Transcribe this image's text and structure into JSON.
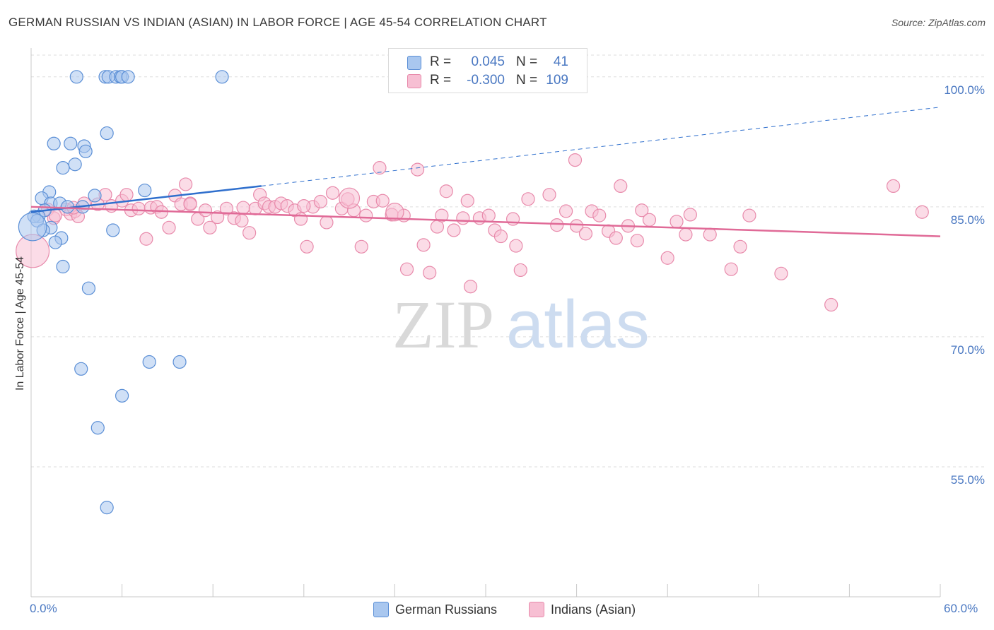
{
  "title": "GERMAN RUSSIAN VS INDIAN (ASIAN) IN LABOR FORCE | AGE 45-54 CORRELATION CHART",
  "source": "Source: ZipAtlas.com",
  "watermark": {
    "zip": "ZIP",
    "atlas": "atlas"
  },
  "legend": {
    "rows": [
      {
        "r_label": "R =",
        "r_value": "0.045",
        "n_label": "N =",
        "n_value": "41"
      },
      {
        "r_label": "R =",
        "r_value": "-0.300",
        "n_label": "N =",
        "n_value": "109"
      }
    ]
  },
  "bottom_legend": {
    "series_a": "German Russians",
    "series_b": "Indians (Asian)"
  },
  "colors": {
    "blue_fill": "#a9c7ef",
    "blue_stroke": "#5b8fd6",
    "blue_line": "#2f6fcd",
    "pink_fill": "#f7bfd3",
    "pink_stroke": "#e88aab",
    "pink_line": "#e06a97",
    "axis_text": "#4a78c2",
    "grid": "#dddddd"
  },
  "chart_data": {
    "type": "scatter",
    "title": "GERMAN RUSSIAN VS INDIAN (ASIAN) IN LABOR FORCE | AGE 45-54 CORRELATION CHART",
    "xlabel": "",
    "ylabel": "In Labor Force | Age 45-54",
    "xlim": [
      0,
      60
    ],
    "ylim": [
      40,
      103
    ],
    "x_tick_labels": [
      "0.0%",
      "60.0%"
    ],
    "y_ticks": [
      {
        "value": 55,
        "label": "55.0%"
      },
      {
        "value": 70,
        "label": "70.0%"
      },
      {
        "value": 85,
        "label": "85.0%"
      },
      {
        "value": 100,
        "label": "100.0%"
      }
    ],
    "grid": "horizontal dashed",
    "legend_position": "top-center",
    "series": [
      {
        "name": "German Russians",
        "color": "#a9c7ef",
        "trend": {
          "x0": 0,
          "y0": 84.4,
          "x1": 15.2,
          "y1": 87.4,
          "dashed_to_x": 60,
          "dashed_to_y": 96.5
        },
        "points": [
          [
            3.0,
            100
          ],
          [
            4.9,
            100
          ],
          [
            5.1,
            100
          ],
          [
            5.6,
            100
          ],
          [
            5.9,
            100
          ],
          [
            6.0,
            100
          ],
          [
            6.4,
            100
          ],
          [
            12.6,
            100
          ],
          [
            5.0,
            93.5
          ],
          [
            1.5,
            92.3
          ],
          [
            2.6,
            92.3
          ],
          [
            3.5,
            92.0
          ],
          [
            3.6,
            91.4
          ],
          [
            2.9,
            89.9
          ],
          [
            2.1,
            89.5
          ],
          [
            1.2,
            86.7
          ],
          [
            0.7,
            86.0
          ],
          [
            4.2,
            86.3
          ],
          [
            7.5,
            86.9
          ],
          [
            1.3,
            85.4
          ],
          [
            1.9,
            85.4
          ],
          [
            3.4,
            85.0
          ],
          [
            2.4,
            85.0
          ],
          [
            0.9,
            84.6
          ],
          [
            0.5,
            83.9
          ],
          [
            0.2,
            83.9
          ],
          [
            0.4,
            83.4
          ],
          [
            1.3,
            82.6
          ],
          [
            0.8,
            82.3
          ],
          [
            5.4,
            82.3
          ],
          [
            2.0,
            81.4
          ],
          [
            1.6,
            80.9
          ],
          [
            2.1,
            78.1
          ],
          [
            3.8,
            75.6
          ],
          [
            7.8,
            67.1
          ],
          [
            9.8,
            67.1
          ],
          [
            3.3,
            66.3
          ],
          [
            6.0,
            63.2
          ],
          [
            4.4,
            59.5
          ],
          [
            5.0,
            50.3
          ],
          [
            0.1,
            82.7
          ]
        ],
        "sizes": [
          1,
          1,
          1,
          1,
          1,
          1,
          1,
          1,
          1,
          1,
          1,
          1,
          1,
          1,
          1,
          1,
          1,
          1,
          1,
          1,
          1,
          1,
          1,
          1,
          1,
          1,
          1,
          1,
          1,
          1,
          1,
          1,
          1,
          1,
          1,
          1,
          1,
          1,
          1,
          1,
          2.2
        ]
      },
      {
        "name": "Indians (Asian)",
        "color": "#f7bfd3",
        "trend": {
          "x0": 0,
          "y0": 85.0,
          "x1": 60,
          "y1": 81.6
        },
        "points": [
          [
            0.1,
            79.9
          ],
          [
            1.1,
            84.7
          ],
          [
            1.5,
            83.7
          ],
          [
            2.3,
            84.7
          ],
          [
            2.6,
            84.2
          ],
          [
            2.9,
            84.5
          ],
          [
            3.5,
            85.4
          ],
          [
            3.1,
            83.9
          ],
          [
            4.4,
            85.3
          ],
          [
            4.9,
            86.4
          ],
          [
            5.3,
            85.1
          ],
          [
            6.0,
            85.7
          ],
          [
            6.3,
            86.4
          ],
          [
            6.6,
            84.6
          ],
          [
            7.1,
            84.8
          ],
          [
            7.6,
            81.3
          ],
          [
            7.9,
            84.9
          ],
          [
            8.3,
            85.0
          ],
          [
            8.6,
            84.4
          ],
          [
            9.1,
            82.6
          ],
          [
            9.5,
            86.3
          ],
          [
            9.9,
            85.3
          ],
          [
            10.2,
            87.6
          ],
          [
            10.5,
            85.4
          ],
          [
            11.0,
            83.6
          ],
          [
            11.5,
            84.6
          ],
          [
            11.8,
            82.6
          ],
          [
            12.3,
            83.8
          ],
          [
            12.9,
            84.8
          ],
          [
            13.4,
            83.7
          ],
          [
            13.9,
            83.4
          ],
          [
            14.4,
            82.0
          ],
          [
            14.8,
            84.8
          ],
          [
            15.1,
            86.4
          ],
          [
            15.4,
            85.4
          ],
          [
            15.7,
            85.0
          ],
          [
            16.1,
            85.0
          ],
          [
            16.5,
            85.4
          ],
          [
            16.9,
            85.1
          ],
          [
            17.4,
            84.6
          ],
          [
            17.8,
            83.6
          ],
          [
            18.2,
            80.4
          ],
          [
            18.6,
            85.0
          ],
          [
            19.1,
            85.6
          ],
          [
            19.5,
            83.2
          ],
          [
            19.9,
            86.6
          ],
          [
            20.5,
            84.8
          ],
          [
            20.9,
            85.9
          ],
          [
            21.3,
            84.6
          ],
          [
            21.8,
            80.4
          ],
          [
            22.1,
            84.0
          ],
          [
            22.6,
            85.6
          ],
          [
            23.0,
            89.5
          ],
          [
            23.2,
            85.7
          ],
          [
            23.8,
            84.1
          ],
          [
            24.6,
            84.0
          ],
          [
            24.8,
            77.8
          ],
          [
            25.5,
            89.3
          ],
          [
            25.9,
            80.6
          ],
          [
            26.3,
            77.4
          ],
          [
            26.8,
            82.7
          ],
          [
            27.1,
            84.0
          ],
          [
            27.4,
            86.8
          ],
          [
            27.9,
            82.3
          ],
          [
            28.5,
            83.7
          ],
          [
            28.8,
            85.7
          ],
          [
            29.0,
            75.8
          ],
          [
            29.6,
            83.7
          ],
          [
            30.2,
            84.0
          ],
          [
            30.6,
            82.3
          ],
          [
            31.0,
            81.6
          ],
          [
            31.8,
            83.6
          ],
          [
            32.0,
            80.5
          ],
          [
            32.3,
            77.7
          ],
          [
            32.8,
            85.9
          ],
          [
            34.2,
            86.4
          ],
          [
            34.7,
            82.9
          ],
          [
            35.3,
            84.5
          ],
          [
            35.9,
            90.4
          ],
          [
            36.0,
            82.8
          ],
          [
            36.6,
            81.9
          ],
          [
            37.0,
            84.5
          ],
          [
            37.5,
            84.0
          ],
          [
            38.1,
            82.2
          ],
          [
            38.6,
            81.4
          ],
          [
            38.9,
            87.4
          ],
          [
            39.4,
            82.8
          ],
          [
            40.0,
            81.1
          ],
          [
            40.3,
            84.6
          ],
          [
            40.8,
            83.5
          ],
          [
            42.0,
            79.1
          ],
          [
            42.6,
            83.3
          ],
          [
            43.2,
            81.8
          ],
          [
            43.5,
            84.1
          ],
          [
            44.8,
            81.8
          ],
          [
            46.2,
            77.8
          ],
          [
            46.8,
            80.4
          ],
          [
            47.4,
            84.0
          ],
          [
            49.5,
            77.3
          ],
          [
            52.8,
            73.7
          ],
          [
            56.9,
            87.4
          ],
          [
            58.8,
            84.4
          ],
          [
            10.5,
            85.3
          ],
          [
            14.0,
            84.9
          ],
          [
            18.0,
            85.1
          ],
          [
            21.0,
            86.0
          ],
          [
            24.0,
            84.4
          ],
          [
            1.6,
            84.0
          ],
          [
            2.8,
            84.9
          ]
        ],
        "sizes": [
          2.6,
          1,
          1,
          1,
          1,
          1,
          1,
          1,
          1,
          1,
          1,
          1,
          1,
          1,
          1,
          1,
          1,
          1,
          1,
          1,
          1,
          1,
          1,
          1,
          1,
          1,
          1,
          1,
          1,
          1,
          1,
          1,
          1,
          1,
          1,
          1,
          1,
          1,
          1,
          1,
          1,
          1,
          1,
          1,
          1,
          1,
          1,
          1,
          1,
          1,
          1,
          1,
          1,
          1,
          1,
          1,
          1,
          1,
          1,
          1,
          1,
          1,
          1,
          1,
          1,
          1,
          1,
          1,
          1,
          1,
          1,
          1,
          1,
          1,
          1,
          1,
          1,
          1,
          1,
          1,
          1,
          1,
          1,
          1,
          1,
          1,
          1,
          1,
          1,
          1,
          1,
          1,
          1,
          1,
          1,
          1,
          1,
          1,
          1,
          1,
          1,
          1,
          1,
          1,
          1,
          1.6,
          1.4
        ]
      }
    ]
  }
}
